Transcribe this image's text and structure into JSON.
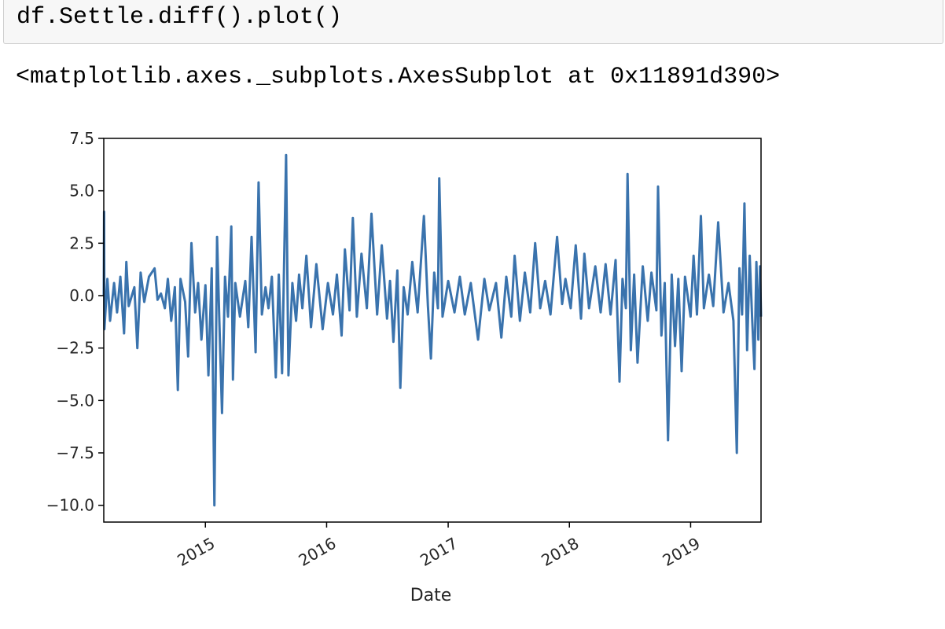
{
  "code_cell": {
    "source": "df.Settle.diff().plot()"
  },
  "output": {
    "repr": "<matplotlib.axes._subplots.AxesSubplot at 0x11891d390>"
  },
  "chart_data": {
    "type": "line",
    "title": "",
    "xlabel": "Date",
    "ylabel": "",
    "grid": false,
    "legend": false,
    "xlim": [
      "2014-03-01",
      "2019-08-01"
    ],
    "ylim": [
      -10.8,
      7.5
    ],
    "x_ticks": [
      "2015",
      "2016",
      "2017",
      "2018",
      "2019"
    ],
    "y_ticks": [
      "7.5",
      "5.0",
      "2.5",
      "0.0",
      "−2.5",
      "−5.0",
      "−7.5",
      "−10.0"
    ],
    "y_tick_values": [
      7.5,
      5.0,
      2.5,
      0.0,
      -2.5,
      -5.0,
      -7.5,
      -10.0
    ],
    "series": [
      {
        "color": "#3a73ad",
        "points": [
          [
            "2014-03-01",
            0.0
          ],
          [
            "2014-03-02",
            4.0
          ],
          [
            "2014-03-03",
            -1.6
          ],
          [
            "2014-03-12",
            0.8
          ],
          [
            "2014-03-20",
            -1.2
          ],
          [
            "2014-04-01",
            0.6
          ],
          [
            "2014-04-10",
            -0.8
          ],
          [
            "2014-04-20",
            0.9
          ],
          [
            "2014-05-01",
            -1.8
          ],
          [
            "2014-05-08",
            1.6
          ],
          [
            "2014-05-15",
            -0.5
          ],
          [
            "2014-06-01",
            0.4
          ],
          [
            "2014-06-10",
            -2.5
          ],
          [
            "2014-06-20",
            1.1
          ],
          [
            "2014-07-01",
            -0.3
          ],
          [
            "2014-07-15",
            0.9
          ],
          [
            "2014-08-01",
            1.3
          ],
          [
            "2014-08-10",
            -0.2
          ],
          [
            "2014-08-20",
            0.1
          ],
          [
            "2014-09-01",
            -0.6
          ],
          [
            "2014-09-10",
            0.8
          ],
          [
            "2014-09-20",
            -1.2
          ],
          [
            "2014-10-01",
            0.4
          ],
          [
            "2014-10-10",
            -4.5
          ],
          [
            "2014-10-18",
            0.8
          ],
          [
            "2014-11-01",
            -0.3
          ],
          [
            "2014-11-10",
            -2.9
          ],
          [
            "2014-11-20",
            2.5
          ],
          [
            "2014-12-01",
            -0.8
          ],
          [
            "2014-12-10",
            0.6
          ],
          [
            "2014-12-20",
            -2.1
          ],
          [
            "2015-01-01",
            0.5
          ],
          [
            "2015-01-10",
            -3.8
          ],
          [
            "2015-01-20",
            1.3
          ],
          [
            "2015-01-28",
            -10.0
          ],
          [
            "2015-02-05",
            2.8
          ],
          [
            "2015-02-12",
            -1.2
          ],
          [
            "2015-02-20",
            -5.6
          ],
          [
            "2015-03-01",
            0.9
          ],
          [
            "2015-03-10",
            -1.0
          ],
          [
            "2015-03-20",
            3.3
          ],
          [
            "2015-03-25",
            -4.0
          ],
          [
            "2015-04-01",
            0.6
          ],
          [
            "2015-04-15",
            -1.0
          ],
          [
            "2015-05-01",
            0.7
          ],
          [
            "2015-05-10",
            -1.5
          ],
          [
            "2015-05-20",
            2.8
          ],
          [
            "2015-06-01",
            -2.7
          ],
          [
            "2015-06-10",
            5.4
          ],
          [
            "2015-06-20",
            -0.9
          ],
          [
            "2015-07-01",
            0.4
          ],
          [
            "2015-07-10",
            -0.6
          ],
          [
            "2015-07-20",
            0.9
          ],
          [
            "2015-08-01",
            -3.9
          ],
          [
            "2015-08-10",
            1.0
          ],
          [
            "2015-08-20",
            -3.7
          ],
          [
            "2015-09-01",
            6.7
          ],
          [
            "2015-09-08",
            -3.8
          ],
          [
            "2015-09-20",
            0.6
          ],
          [
            "2015-10-01",
            -1.2
          ],
          [
            "2015-10-10",
            1.0
          ],
          [
            "2015-10-20",
            -0.6
          ],
          [
            "2015-11-01",
            1.9
          ],
          [
            "2015-11-15",
            -1.5
          ],
          [
            "2015-12-01",
            1.5
          ],
          [
            "2015-12-20",
            -1.6
          ],
          [
            "2016-01-05",
            0.6
          ],
          [
            "2016-01-20",
            -0.9
          ],
          [
            "2016-02-01",
            1.0
          ],
          [
            "2016-02-15",
            -1.9
          ],
          [
            "2016-02-25",
            2.2
          ],
          [
            "2016-03-10",
            -0.7
          ],
          [
            "2016-03-20",
            3.7
          ],
          [
            "2016-04-01",
            -1.0
          ],
          [
            "2016-04-15",
            2.0
          ],
          [
            "2016-05-01",
            -0.6
          ],
          [
            "2016-05-15",
            3.9
          ],
          [
            "2016-06-01",
            -0.9
          ],
          [
            "2016-06-15",
            2.4
          ],
          [
            "2016-07-01",
            -1.1
          ],
          [
            "2016-07-10",
            0.7
          ],
          [
            "2016-07-20",
            -2.2
          ],
          [
            "2016-08-01",
            1.2
          ],
          [
            "2016-08-10",
            -4.4
          ],
          [
            "2016-08-20",
            0.4
          ],
          [
            "2016-09-01",
            -0.9
          ],
          [
            "2016-09-15",
            1.6
          ],
          [
            "2016-10-01",
            -0.8
          ],
          [
            "2016-10-20",
            3.8
          ],
          [
            "2016-11-01",
            -0.5
          ],
          [
            "2016-11-10",
            -3.0
          ],
          [
            "2016-11-20",
            1.1
          ],
          [
            "2016-12-01",
            -0.6
          ],
          [
            "2016-12-05",
            5.6
          ],
          [
            "2016-12-15",
            -1.0
          ],
          [
            "2017-01-01",
            0.7
          ],
          [
            "2017-01-20",
            -0.8
          ],
          [
            "2017-02-05",
            0.9
          ],
          [
            "2017-02-20",
            -0.9
          ],
          [
            "2017-03-10",
            0.6
          ],
          [
            "2017-04-01",
            -2.1
          ],
          [
            "2017-04-20",
            0.8
          ],
          [
            "2017-05-05",
            -0.7
          ],
          [
            "2017-05-25",
            0.6
          ],
          [
            "2017-06-10",
            -2.0
          ],
          [
            "2017-06-25",
            0.9
          ],
          [
            "2017-07-10",
            -1.0
          ],
          [
            "2017-07-20",
            1.9
          ],
          [
            "2017-08-05",
            -1.2
          ],
          [
            "2017-08-20",
            1.1
          ],
          [
            "2017-09-05",
            -0.8
          ],
          [
            "2017-09-20",
            2.5
          ],
          [
            "2017-10-05",
            -0.6
          ],
          [
            "2017-10-20",
            0.7
          ],
          [
            "2017-11-05",
            -0.9
          ],
          [
            "2017-11-25",
            2.8
          ],
          [
            "2017-12-10",
            -0.4
          ],
          [
            "2017-12-20",
            0.8
          ],
          [
            "2018-01-05",
            -0.6
          ],
          [
            "2018-01-20",
            2.4
          ],
          [
            "2018-02-05",
            -1.1
          ],
          [
            "2018-02-15",
            2.0
          ],
          [
            "2018-03-01",
            -0.6
          ],
          [
            "2018-03-20",
            1.4
          ],
          [
            "2018-04-05",
            -0.8
          ],
          [
            "2018-04-20",
            1.5
          ],
          [
            "2018-05-05",
            -0.9
          ],
          [
            "2018-05-20",
            1.7
          ],
          [
            "2018-06-01",
            -4.1
          ],
          [
            "2018-06-10",
            0.8
          ],
          [
            "2018-06-20",
            -0.6
          ],
          [
            "2018-06-25",
            5.8
          ],
          [
            "2018-07-05",
            -2.6
          ],
          [
            "2018-07-15",
            1.0
          ],
          [
            "2018-07-25",
            -3.2
          ],
          [
            "2018-08-10",
            1.4
          ],
          [
            "2018-08-25",
            -1.2
          ],
          [
            "2018-09-05",
            1.1
          ],
          [
            "2018-09-20",
            -0.7
          ],
          [
            "2018-09-25",
            5.2
          ],
          [
            "2018-10-05",
            -1.9
          ],
          [
            "2018-10-15",
            0.6
          ],
          [
            "2018-10-25",
            -6.9
          ],
          [
            "2018-11-05",
            1.0
          ],
          [
            "2018-11-15",
            -2.4
          ],
          [
            "2018-11-25",
            0.8
          ],
          [
            "2018-12-05",
            -3.6
          ],
          [
            "2018-12-15",
            0.9
          ],
          [
            "2019-01-01",
            -1.0
          ],
          [
            "2019-01-10",
            1.9
          ],
          [
            "2019-01-20",
            -0.9
          ],
          [
            "2019-02-01",
            3.8
          ],
          [
            "2019-02-10",
            -0.6
          ],
          [
            "2019-02-25",
            1.0
          ],
          [
            "2019-03-10",
            -0.5
          ],
          [
            "2019-03-25",
            3.5
          ],
          [
            "2019-04-10",
            -0.8
          ],
          [
            "2019-04-25",
            0.6
          ],
          [
            "2019-05-10",
            -1.2
          ],
          [
            "2019-05-20",
            -7.5
          ],
          [
            "2019-05-28",
            1.3
          ],
          [
            "2019-06-05",
            -0.9
          ],
          [
            "2019-06-12",
            4.4
          ],
          [
            "2019-06-20",
            -2.6
          ],
          [
            "2019-06-28",
            1.9
          ],
          [
            "2019-07-05",
            -1.0
          ],
          [
            "2019-07-12",
            -3.5
          ],
          [
            "2019-07-18",
            1.6
          ],
          [
            "2019-07-24",
            -2.1
          ],
          [
            "2019-07-29",
            1.4
          ],
          [
            "2019-08-01",
            -1.0
          ]
        ]
      }
    ]
  }
}
